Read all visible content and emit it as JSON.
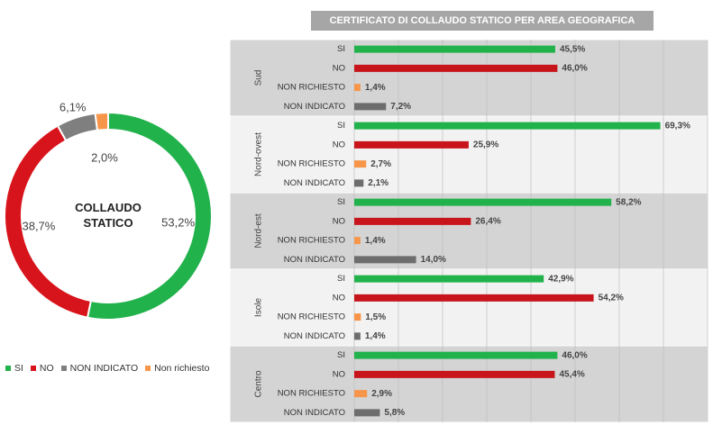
{
  "chart_data": [
    {
      "type": "donut",
      "title": "COLLAUDO STATICO",
      "categories": [
        "SI",
        "NO",
        "NON INDICATO",
        "Non richiesto"
      ],
      "values": [
        53.2,
        38.7,
        6.1,
        2.0
      ],
      "value_labels": [
        "53,2%",
        "38,7%",
        "6,1%",
        "2,0%"
      ],
      "colors": [
        "#22b24c",
        "#d7141b",
        "#7f7f7f",
        "#f7964a"
      ],
      "legend": "bottom"
    },
    {
      "type": "grouped-hbar",
      "title": "CERTIFICATO DI COLLAUDO STATICO PER AREA GEOGRAFICA",
      "categories": [
        "SI",
        "NO",
        "NON RICHIESTO",
        "NON INDICATO"
      ],
      "colors": [
        "#22b24c",
        "#c8141b",
        "#f7964a",
        "#6d6d6d"
      ],
      "groups": [
        {
          "name": "Sud",
          "values": [
            45.5,
            46.0,
            1.4,
            7.2
          ],
          "value_labels": [
            "45,5%",
            "46,0%",
            "1,4%",
            "7,2%"
          ]
        },
        {
          "name": "Nord-ovest",
          "values": [
            69.3,
            25.9,
            2.7,
            2.1
          ],
          "value_labels": [
            "69,3%",
            "25,9%",
            "2,7%",
            "2,1%"
          ]
        },
        {
          "name": "Nord-est",
          "values": [
            58.2,
            26.4,
            1.4,
            14.0
          ],
          "value_labels": [
            "58,2%",
            "26,4%",
            "1,4%",
            "14,0%"
          ]
        },
        {
          "name": "Isole",
          "values": [
            42.9,
            54.2,
            1.5,
            1.4
          ],
          "value_labels": [
            "42,9%",
            "54,2%",
            "1,5%",
            "1,4%"
          ]
        },
        {
          "name": "Centro",
          "values": [
            46.0,
            45.4,
            2.9,
            5.8
          ],
          "value_labels": [
            "46,0%",
            "45,4%",
            "2,9%",
            "5,8%"
          ]
        }
      ],
      "xlim": [
        0,
        80
      ],
      "xticks": [
        0,
        10,
        20,
        30,
        40,
        50,
        60,
        70,
        80
      ],
      "grid": true
    }
  ]
}
